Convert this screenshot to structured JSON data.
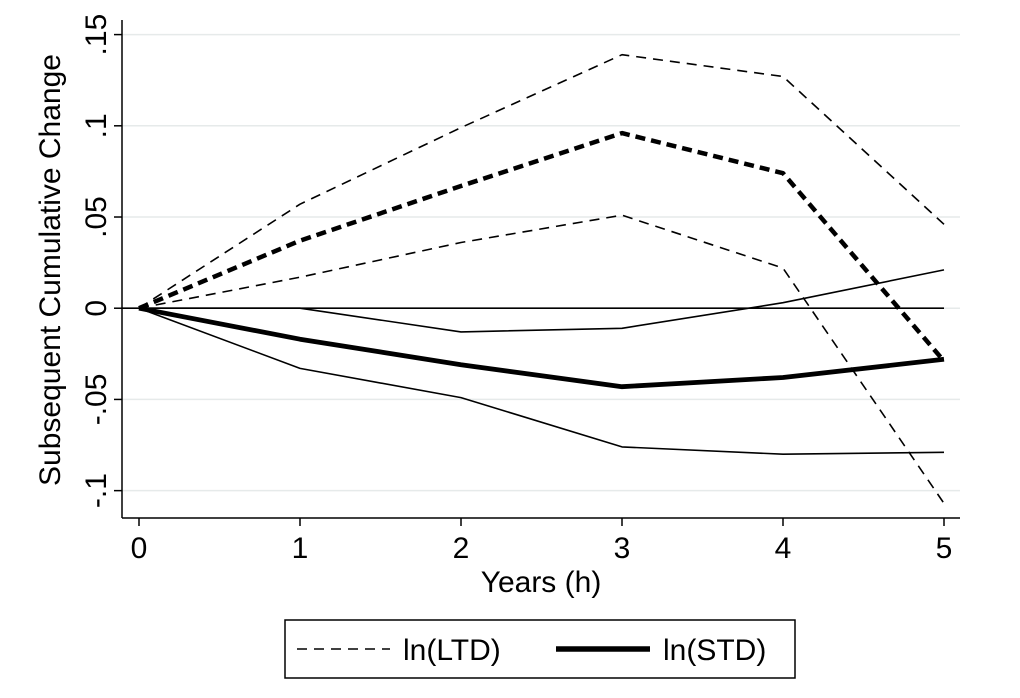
{
  "chart_data": {
    "type": "line",
    "xlabel": "Years (h)",
    "ylabel": "Subsequent Cumulative Change",
    "x": [
      0,
      1,
      2,
      3,
      4,
      5
    ],
    "xlim": [
      0,
      5
    ],
    "ylim": [
      -0.115,
      0.158
    ],
    "x_ticks": [
      {
        "value": 0,
        "label": "0"
      },
      {
        "value": 1,
        "label": "1"
      },
      {
        "value": 2,
        "label": "2"
      },
      {
        "value": 3,
        "label": "3"
      },
      {
        "value": 4,
        "label": "4"
      },
      {
        "value": 5,
        "label": "5"
      }
    ],
    "y_ticks": [
      {
        "value": -0.1,
        "label": "-.1"
      },
      {
        "value": -0.05,
        "label": "-.05"
      },
      {
        "value": 0,
        "label": "0"
      },
      {
        "value": 0.05,
        "label": ".05"
      },
      {
        "value": 0.1,
        "label": ".1"
      },
      {
        "value": 0.15,
        "label": ".15"
      }
    ],
    "grid": true,
    "reference_line_y": 0,
    "series": [
      {
        "name": "ln(LTD)",
        "role": "estimate",
        "style": "dashed",
        "weight": "thick",
        "values": [
          0,
          0.037,
          0.067,
          0.096,
          0.074,
          -0.029
        ]
      },
      {
        "name": "ln(LTD) upper band",
        "role": "band",
        "style": "dashed",
        "weight": "thin",
        "values": [
          0,
          0.057,
          0.099,
          0.139,
          0.127,
          0.046
        ]
      },
      {
        "name": "ln(LTD) lower band",
        "role": "band",
        "style": "dashed",
        "weight": "thin",
        "values": [
          0,
          0.017,
          0.036,
          0.051,
          0.022,
          -0.107
        ]
      },
      {
        "name": "ln(STD)",
        "role": "estimate",
        "style": "solid",
        "weight": "thick",
        "values": [
          0,
          -0.017,
          -0.031,
          -0.043,
          -0.038,
          -0.028
        ]
      },
      {
        "name": "ln(STD) upper band",
        "role": "band",
        "style": "solid",
        "weight": "thin",
        "values": [
          0,
          0,
          -0.013,
          -0.011,
          0.003,
          0.021
        ]
      },
      {
        "name": "ln(STD) lower band",
        "role": "band",
        "style": "solid",
        "weight": "thin",
        "values": [
          0,
          -0.033,
          -0.049,
          -0.076,
          -0.08,
          -0.079
        ]
      }
    ],
    "legend": {
      "position": "bottom-center",
      "entries": [
        {
          "label": "ln(LTD)",
          "style": "dashed"
        },
        {
          "label": "ln(STD)",
          "style": "solid"
        }
      ]
    }
  }
}
